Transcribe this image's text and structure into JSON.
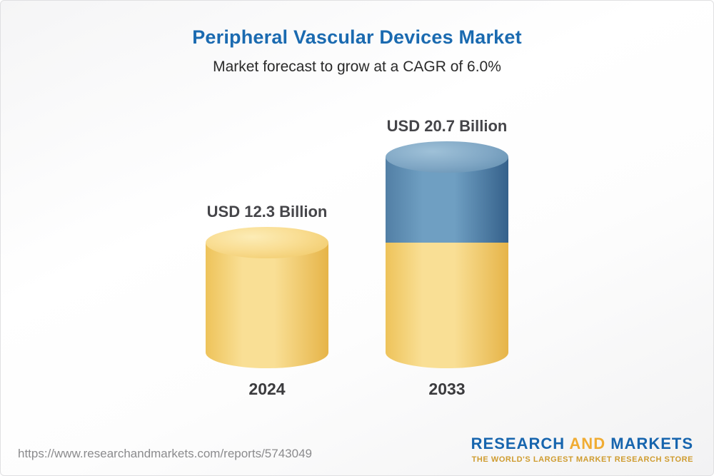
{
  "header": {
    "title": "Peripheral Vascular Devices Market",
    "subtitle": "Market forecast to grow at a CAGR of 6.0%"
  },
  "chart_data": {
    "type": "bar",
    "title": "Peripheral Vascular Devices Market",
    "subtitle": "Market forecast to grow at a CAGR of 6.0%",
    "cagr_pct": 6.0,
    "unit": "USD Billion",
    "categories": [
      "2024",
      "2033"
    ],
    "values": [
      12.3,
      20.7
    ],
    "ylim": [
      0,
      22
    ],
    "grid": false,
    "legend": false,
    "bars": [
      {
        "category": "2024",
        "value": 12.3,
        "label": "USD 12.3 Billion",
        "color": "#F6D26E"
      },
      {
        "category": "2033",
        "value": 20.7,
        "label": "USD 20.7 Billion",
        "base_value": 12.3,
        "base_color": "#F6D26E",
        "growth_color": "#5681A6"
      }
    ]
  },
  "colors": {
    "title_blue": "#1A6AB0",
    "bar_yellow": "#F6D26E",
    "bar_blue": "#5681A6",
    "logo_blue": "#1765AE",
    "logo_gold": "#F0AC33"
  },
  "footer": {
    "url": "https://www.researchandmarkets.com/reports/5743049",
    "logo": {
      "word1": "RESEARCH",
      "word2": "AND",
      "word3": "MARKETS",
      "tagline": "THE WORLD'S LARGEST MARKET RESEARCH STORE"
    }
  }
}
